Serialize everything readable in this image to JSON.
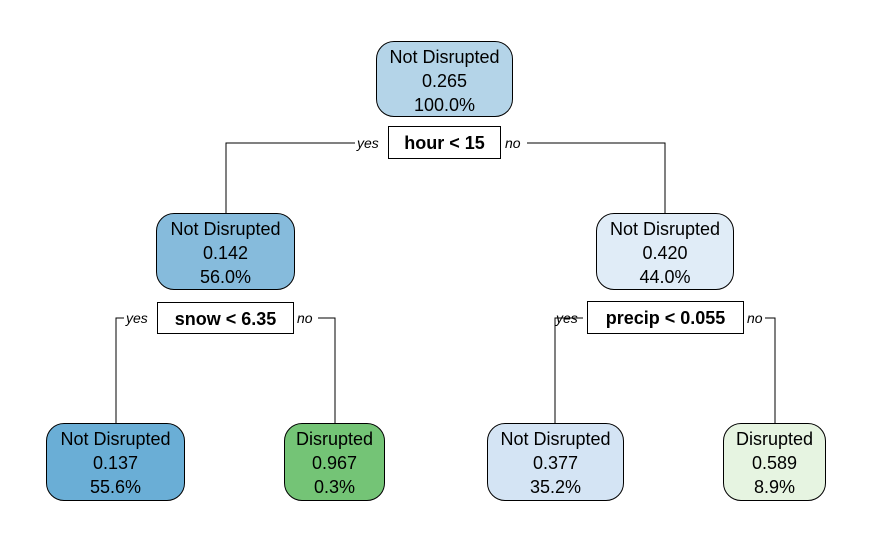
{
  "nodes": {
    "root": {
      "class": "Not Disrupted",
      "value": "0.265",
      "pct": "100.0%",
      "fill": "#b4d4e8"
    },
    "left": {
      "class": "Not Disrupted",
      "value": "0.142",
      "pct": "56.0%",
      "fill": "#86bbdc"
    },
    "right": {
      "class": "Not Disrupted",
      "value": "0.420",
      "pct": "44.0%",
      "fill": "#e0ecf7"
    },
    "ll": {
      "class": "Not Disrupted",
      "value": "0.137",
      "pct": "55.6%",
      "fill": "#6aaed6"
    },
    "lr": {
      "class": "Disrupted",
      "value": "0.967",
      "pct": "0.3%",
      "fill": "#74c476"
    },
    "rl": {
      "class": "Not Disrupted",
      "value": "0.377",
      "pct": "35.2%",
      "fill": "#d4e4f4"
    },
    "rr": {
      "class": "Disrupted",
      "value": "0.589",
      "pct": "8.9%",
      "fill": "#e6f4e1"
    }
  },
  "splits": {
    "root": {
      "rule": "hour < 15",
      "yes": "yes",
      "no": "no"
    },
    "left": {
      "rule": "snow < 6.35",
      "yes": "yes",
      "no": "no"
    },
    "right": {
      "rule": "precip < 0.055",
      "yes": "yes",
      "no": "no"
    }
  }
}
